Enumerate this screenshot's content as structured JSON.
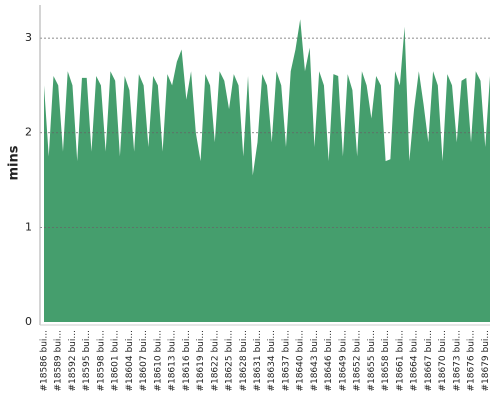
{
  "chart_data": {
    "type": "area",
    "y_label": "mins",
    "color": "#459e6d",
    "grid": true,
    "ylim": [
      0,
      3.35
    ],
    "yticks": [
      0,
      1,
      2,
      3
    ],
    "categories": [
      "#18586 bui...",
      null,
      null,
      "#18589 bui...",
      null,
      null,
      "#18592 bui...",
      null,
      null,
      "#18595 bui...",
      null,
      null,
      "#18598 bui...",
      null,
      null,
      "#18601 bui...",
      null,
      null,
      "#18604 bui...",
      null,
      null,
      "#18607 bui...",
      null,
      null,
      "#18610 bui...",
      null,
      null,
      "#18613 bui...",
      null,
      null,
      "#18616 bui...",
      null,
      null,
      "#18619 bui...",
      null,
      null,
      "#18622 bui...",
      null,
      null,
      "#18625 bui...",
      null,
      null,
      "#18628 bui...",
      null,
      null,
      "#18631 bui...",
      null,
      null,
      "#18634 bui...",
      null,
      null,
      "#18637 bui...",
      null,
      null,
      "#18640 bui...",
      null,
      null,
      "#18643 bui...",
      null,
      null,
      "#18646 bui...",
      null,
      null,
      "#18649 bui...",
      null,
      null,
      "#18652 bui...",
      null,
      null,
      "#18655 bui...",
      null,
      null,
      "#18658 bui...",
      null,
      null,
      "#18661 bui...",
      null,
      null,
      "#18664 bui...",
      null,
      null,
      "#18667 bui...",
      null,
      null,
      "#18670 bui...",
      null,
      null,
      "#18673 bui...",
      null,
      null,
      "#18676 bui...",
      null,
      null,
      "#18679 bui...",
      null
    ],
    "values": [
      2.5,
      1.75,
      2.6,
      2.5,
      1.8,
      2.65,
      2.5,
      1.7,
      2.58,
      2.58,
      1.8,
      2.6,
      2.5,
      1.8,
      2.65,
      2.55,
      1.75,
      2.6,
      2.45,
      1.8,
      2.62,
      2.5,
      1.85,
      2.6,
      2.5,
      1.8,
      2.62,
      2.5,
      2.75,
      2.88,
      2.35,
      2.65,
      2.0,
      1.7,
      2.62,
      2.5,
      1.9,
      2.65,
      2.55,
      2.25,
      2.62,
      2.5,
      1.75,
      2.6,
      1.55,
      1.9,
      2.62,
      2.5,
      1.9,
      2.65,
      2.5,
      1.85,
      2.65,
      2.88,
      3.2,
      2.65,
      2.9,
      1.85,
      2.65,
      2.5,
      1.7,
      2.62,
      2.6,
      1.75,
      2.62,
      2.45,
      1.75,
      2.65,
      2.5,
      2.15,
      2.6,
      2.5,
      1.7,
      1.72,
      2.65,
      2.5,
      3.12,
      1.7,
      2.25,
      2.65,
      2.3,
      1.9,
      2.65,
      2.5,
      1.7,
      2.62,
      2.5,
      1.9,
      2.55,
      2.58,
      1.9,
      2.65,
      2.55,
      1.85,
      2.6
    ]
  }
}
